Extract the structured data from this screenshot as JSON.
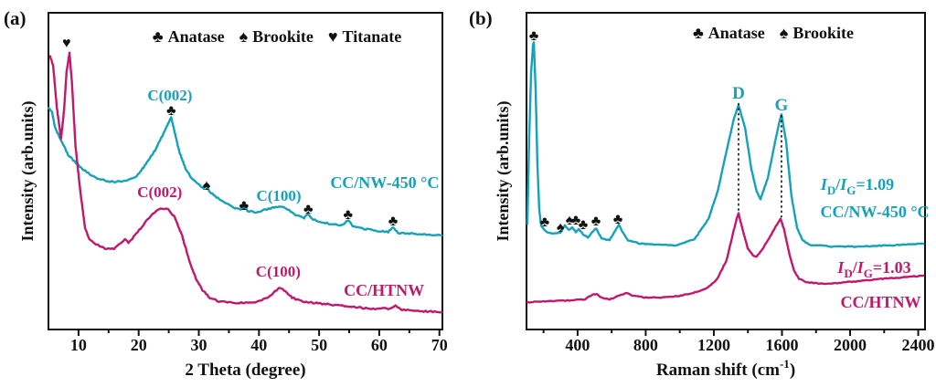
{
  "figure": {
    "background": "#ffffff",
    "panels": [
      {
        "tag": "(a)"
      },
      {
        "tag": "(b)"
      }
    ]
  },
  "colors": {
    "teal": "#15a2b8",
    "pink": "#c2186b",
    "ink": "#111111"
  },
  "chart_data": [
    {
      "id": "xrd",
      "type": "line",
      "xlabel": "2 Theta (degree)",
      "ylabel": "Intensity (arb.units)",
      "xlim": [
        5,
        70.5
      ],
      "ylim": [
        0,
        100
      ],
      "xticks": [
        10,
        20,
        30,
        40,
        50,
        60,
        70
      ],
      "minor_xticks": [
        15,
        25,
        35,
        45,
        55,
        65
      ],
      "grid": false,
      "legend": {
        "position": "top-center",
        "items": [
          {
            "symbol": "♣",
            "label": "Anatase"
          },
          {
            "symbol": "♠",
            "label": "Brookite"
          },
          {
            "symbol": "♥",
            "label": "Titanate"
          }
        ]
      },
      "series": [
        {
          "name": "CC/NW-450 °C",
          "color_key": "teal",
          "points": [
            [
              5,
              70
            ],
            [
              5.6,
              68.6
            ],
            [
              6.1,
              63.7
            ],
            [
              8.3,
              55
            ],
            [
              10.6,
              50.7
            ],
            [
              12.9,
              47.8
            ],
            [
              15.2,
              46.7
            ],
            [
              17.4,
              46.7
            ],
            [
              19.7,
              48.4
            ],
            [
              21.2,
              52.2
            ],
            [
              22.7,
              56.5
            ],
            [
              24,
              61.4
            ],
            [
              24.9,
              65.1
            ],
            [
              25.4,
              67.1
            ],
            [
              25.8,
              63.7
            ],
            [
              26.7,
              56.5
            ],
            [
              27.8,
              50.7
            ],
            [
              28.9,
              47.6
            ],
            [
              30.1,
              45.5
            ],
            [
              30.8,
              44.3
            ],
            [
              31.3,
              45.8
            ],
            [
              31.8,
              43.5
            ],
            [
              32.7,
              42.1
            ],
            [
              34.2,
              40.1
            ],
            [
              35.7,
              38.6
            ],
            [
              36.9,
              37.8
            ],
            [
              37.5,
              38.9
            ],
            [
              38.1,
              37.5
            ],
            [
              39.5,
              36.9
            ],
            [
              41,
              37.8
            ],
            [
              42.5,
              38.6
            ],
            [
              43.6,
              38.9
            ],
            [
              44.8,
              37.8
            ],
            [
              46.3,
              36
            ],
            [
              47.5,
              35.2
            ],
            [
              48.1,
              36.6
            ],
            [
              48.8,
              34.9
            ],
            [
              50.1,
              34
            ],
            [
              51.6,
              33.4
            ],
            [
              53.9,
              32.9
            ],
            [
              54.8,
              34.6
            ],
            [
              55.6,
              32.6
            ],
            [
              57.7,
              31.7
            ],
            [
              60,
              31.1
            ],
            [
              61.5,
              30.8
            ],
            [
              62.3,
              32.3
            ],
            [
              63.1,
              30.5
            ],
            [
              65.3,
              30.3
            ],
            [
              67.6,
              30
            ],
            [
              70.4,
              29.7
            ]
          ]
        },
        {
          "name": "CC/HTNW",
          "color_key": "pink",
          "points": [
            [
              5.3,
              86.2
            ],
            [
              5.8,
              83
            ],
            [
              6.4,
              70
            ],
            [
              7.1,
              60.2
            ],
            [
              7.6,
              69.5
            ],
            [
              8,
              81
            ],
            [
              8.5,
              87.3
            ],
            [
              8.9,
              78.1
            ],
            [
              9.5,
              57.9
            ],
            [
              10.3,
              43.5
            ],
            [
              11.1,
              32
            ],
            [
              11.8,
              28.5
            ],
            [
              12.9,
              26.8
            ],
            [
              14.4,
              25.6
            ],
            [
              15.9,
              25.4
            ],
            [
              17.1,
              27.4
            ],
            [
              17.7,
              28.5
            ],
            [
              18.3,
              27.4
            ],
            [
              19.4,
              29.7
            ],
            [
              20.9,
              33.4
            ],
            [
              22.4,
              36.6
            ],
            [
              23.3,
              37.8
            ],
            [
              24,
              38.3
            ],
            [
              24.9,
              37.8
            ],
            [
              26,
              35.4
            ],
            [
              27.2,
              29.7
            ],
            [
              28.4,
              21.9
            ],
            [
              29.5,
              16.1
            ],
            [
              30.6,
              12.4
            ],
            [
              31.8,
              10.1
            ],
            [
              33.3,
              8.9
            ],
            [
              35.6,
              8.4
            ],
            [
              37.9,
              8.4
            ],
            [
              40.2,
              8.9
            ],
            [
              41.7,
              10.4
            ],
            [
              42.9,
              12.4
            ],
            [
              43.5,
              13.3
            ],
            [
              44.4,
              12.1
            ],
            [
              45.5,
              10.1
            ],
            [
              47,
              8.9
            ],
            [
              49.3,
              8.4
            ],
            [
              52.3,
              7.8
            ],
            [
              55.4,
              7.2
            ],
            [
              58.4,
              6.6
            ],
            [
              61.5,
              6.6
            ],
            [
              62.7,
              7.5
            ],
            [
              63.8,
              6.3
            ],
            [
              66.8,
              5.8
            ],
            [
              70.4,
              5.5
            ]
          ]
        }
      ],
      "markers": [
        {
          "symbol": "♥",
          "x": 8.0,
          "y": 89.0
        },
        {
          "symbol": "♣",
          "x": 25.4,
          "y": 67.7
        },
        {
          "symbol": "♠",
          "x": 31.3,
          "y": 44.1
        },
        {
          "symbol": "♣",
          "x": 37.5,
          "y": 37.8
        },
        {
          "symbol": "♣",
          "x": 48.2,
          "y": 36.6
        },
        {
          "symbol": "♣",
          "x": 54.8,
          "y": 34.9
        },
        {
          "symbol": "♣",
          "x": 62.3,
          "y": 32.9
        }
      ],
      "peak_labels": [
        {
          "text": "C(002)",
          "color_key": "teal",
          "x": 25.2,
          "y": 72.3
        },
        {
          "text": "C(002)",
          "color_key": "pink",
          "x": 23.5,
          "y": 41.8
        },
        {
          "text": "C(100)",
          "color_key": "teal",
          "x": 43.3,
          "y": 40.6
        },
        {
          "text": "C(100)",
          "color_key": "pink",
          "x": 43.2,
          "y": 16.7
        }
      ],
      "series_labels": [
        {
          "text": "CC/NW-450 °C",
          "color_key": "teal",
          "x": 60.9,
          "y": 44.7
        },
        {
          "text": "CC/HTNW",
          "color_key": "pink",
          "x": 60.8,
          "y": 10.7
        }
      ]
    },
    {
      "id": "raman",
      "type": "line",
      "xlabel_parts": {
        "pre": "Raman shift (cm",
        "sup": "-1",
        "post": ")"
      },
      "ylabel": "Intensity (arb.units)",
      "xlim": [
        100,
        2440
      ],
      "ylim": [
        0,
        100
      ],
      "xticks": [
        400,
        800,
        1200,
        1600,
        2000,
        2400
      ],
      "minor_xticks": [
        200,
        600,
        1000,
        1400,
        1800,
        2200
      ],
      "grid": false,
      "legend": {
        "position": "top-center",
        "items": [
          {
            "symbol": "♣",
            "label": "Anatase"
          },
          {
            "symbol": "♠",
            "label": "Brookite"
          }
        ]
      },
      "series": [
        {
          "name": "CC/NW-450 °C",
          "color_key": "teal",
          "points": [
            [
              105,
              33.4
            ],
            [
              116,
              60.8
            ],
            [
              127,
              81
            ],
            [
              138,
              89.6
            ],
            [
              143,
              90.8
            ],
            [
              154,
              75.2
            ],
            [
              164,
              52.2
            ],
            [
              175,
              37.8
            ],
            [
              186,
              32.6
            ],
            [
              207,
              31.4
            ],
            [
              229,
              30.5
            ],
            [
              266,
              30.3
            ],
            [
              299,
              30.5
            ],
            [
              325,
              32.9
            ],
            [
              347,
              31.4
            ],
            [
              368,
              32.3
            ],
            [
              390,
              30.8
            ],
            [
              406,
              31.7
            ],
            [
              433,
              30.0
            ],
            [
              460,
              29.1
            ],
            [
              508,
              32.0
            ],
            [
              540,
              28.8
            ],
            [
              588,
              28.2
            ],
            [
              642,
              33.1
            ],
            [
              669,
              30.3
            ],
            [
              696,
              28.2
            ],
            [
              766,
              27.1
            ],
            [
              873,
              26.8
            ],
            [
              980,
              26.5
            ],
            [
              1087,
              28.5
            ],
            [
              1168,
              34.9
            ],
            [
              1222,
              43.5
            ],
            [
              1275,
              56.5
            ],
            [
              1318,
              66.6
            ],
            [
              1345,
              70.9
            ],
            [
              1383,
              63.7
            ],
            [
              1420,
              50.7
            ],
            [
              1452,
              43.5
            ],
            [
              1474,
              41.2
            ],
            [
              1517,
              47.8
            ],
            [
              1560,
              59.4
            ],
            [
              1587,
              66.0
            ],
            [
              1597,
              68.0
            ],
            [
              1624,
              59.4
            ],
            [
              1656,
              42.1
            ],
            [
              1689,
              32.0
            ],
            [
              1721,
              28.2
            ],
            [
              1758,
              26.8
            ],
            [
              1893,
              26.2
            ],
            [
              2054,
              26.2
            ],
            [
              2215,
              26.5
            ],
            [
              2429,
              27.1
            ]
          ]
        },
        {
          "name": "CC/HTNW",
          "color_key": "pink",
          "points": [
            [
              105,
              8.6
            ],
            [
              229,
              8.9
            ],
            [
              363,
              9.2
            ],
            [
              443,
              9.5
            ],
            [
              486,
              11.0
            ],
            [
              513,
              11.2
            ],
            [
              540,
              10.1
            ],
            [
              588,
              9.5
            ],
            [
              658,
              11.0
            ],
            [
              685,
              11.5
            ],
            [
              723,
              10.7
            ],
            [
              792,
              10.1
            ],
            [
              900,
              10.1
            ],
            [
              1007,
              10.7
            ],
            [
              1098,
              11.8
            ],
            [
              1168,
              13.3
            ],
            [
              1222,
              16.1
            ],
            [
              1275,
              21.9
            ],
            [
              1313,
              30.5
            ],
            [
              1334,
              34.9
            ],
            [
              1345,
              36.6
            ],
            [
              1367,
              32.0
            ],
            [
              1399,
              25.6
            ],
            [
              1431,
              23.3
            ],
            [
              1452,
              23.1
            ],
            [
              1485,
              25.4
            ],
            [
              1528,
              29.1
            ],
            [
              1570,
              33.1
            ],
            [
              1592,
              34.9
            ],
            [
              1613,
              31.4
            ],
            [
              1646,
              23.3
            ],
            [
              1672,
              18.4
            ],
            [
              1699,
              16.1
            ],
            [
              1742,
              15.0
            ],
            [
              1839,
              14.4
            ],
            [
              2000,
              15.0
            ],
            [
              2161,
              15.9
            ],
            [
              2295,
              16.4
            ],
            [
              2429,
              17.0
            ]
          ]
        }
      ],
      "markers": [
        {
          "symbol": "♣",
          "x": 143,
          "y": 91.4
        },
        {
          "symbol": "♣",
          "x": 207,
          "y": 32.6
        },
        {
          "symbol": "♠",
          "x": 299,
          "y": 30.8
        },
        {
          "symbol": "♠",
          "x": 352,
          "y": 33.1
        },
        {
          "symbol": "♣",
          "x": 390,
          "y": 33.1
        },
        {
          "symbol": "♣",
          "x": 433,
          "y": 31.7
        },
        {
          "symbol": "♣",
          "x": 508,
          "y": 32.9
        },
        {
          "symbol": "♣",
          "x": 637,
          "y": 33.4
        }
      ],
      "band_labels": [
        {
          "text": "D",
          "color_key": "teal",
          "x": 1345,
          "y": 72.9
        },
        {
          "text": "G",
          "color_key": "teal",
          "x": 1597,
          "y": 69.2
        }
      ],
      "dashed_lines": [
        {
          "x": 1345,
          "y1": 71.5,
          "y2": 37.2
        },
        {
          "x": 1597,
          "y1": 67.7,
          "y2": 35.4
        }
      ],
      "ratio_labels": [
        {
          "color_key": "teal",
          "x": 2043,
          "y": 44.1,
          "parts": {
            "base1": "I",
            "sub1": "D",
            "slash": "/",
            "base2": "I",
            "sub2": "G",
            "value": "=1.09"
          }
        },
        {
          "color_key": "pink",
          "x": 2142,
          "y": 17.9,
          "parts": {
            "base1": "I",
            "sub1": "D",
            "slash": "/",
            "base2": "I",
            "sub2": "G",
            "value": "=1.03"
          }
        }
      ],
      "series_labels": [
        {
          "text": "CC/NW-450 °C",
          "color_key": "teal",
          "x": 2145,
          "y": 35.4
        },
        {
          "text": "CC/HTNW",
          "color_key": "pink",
          "x": 2180,
          "y": 6.9
        }
      ]
    }
  ]
}
